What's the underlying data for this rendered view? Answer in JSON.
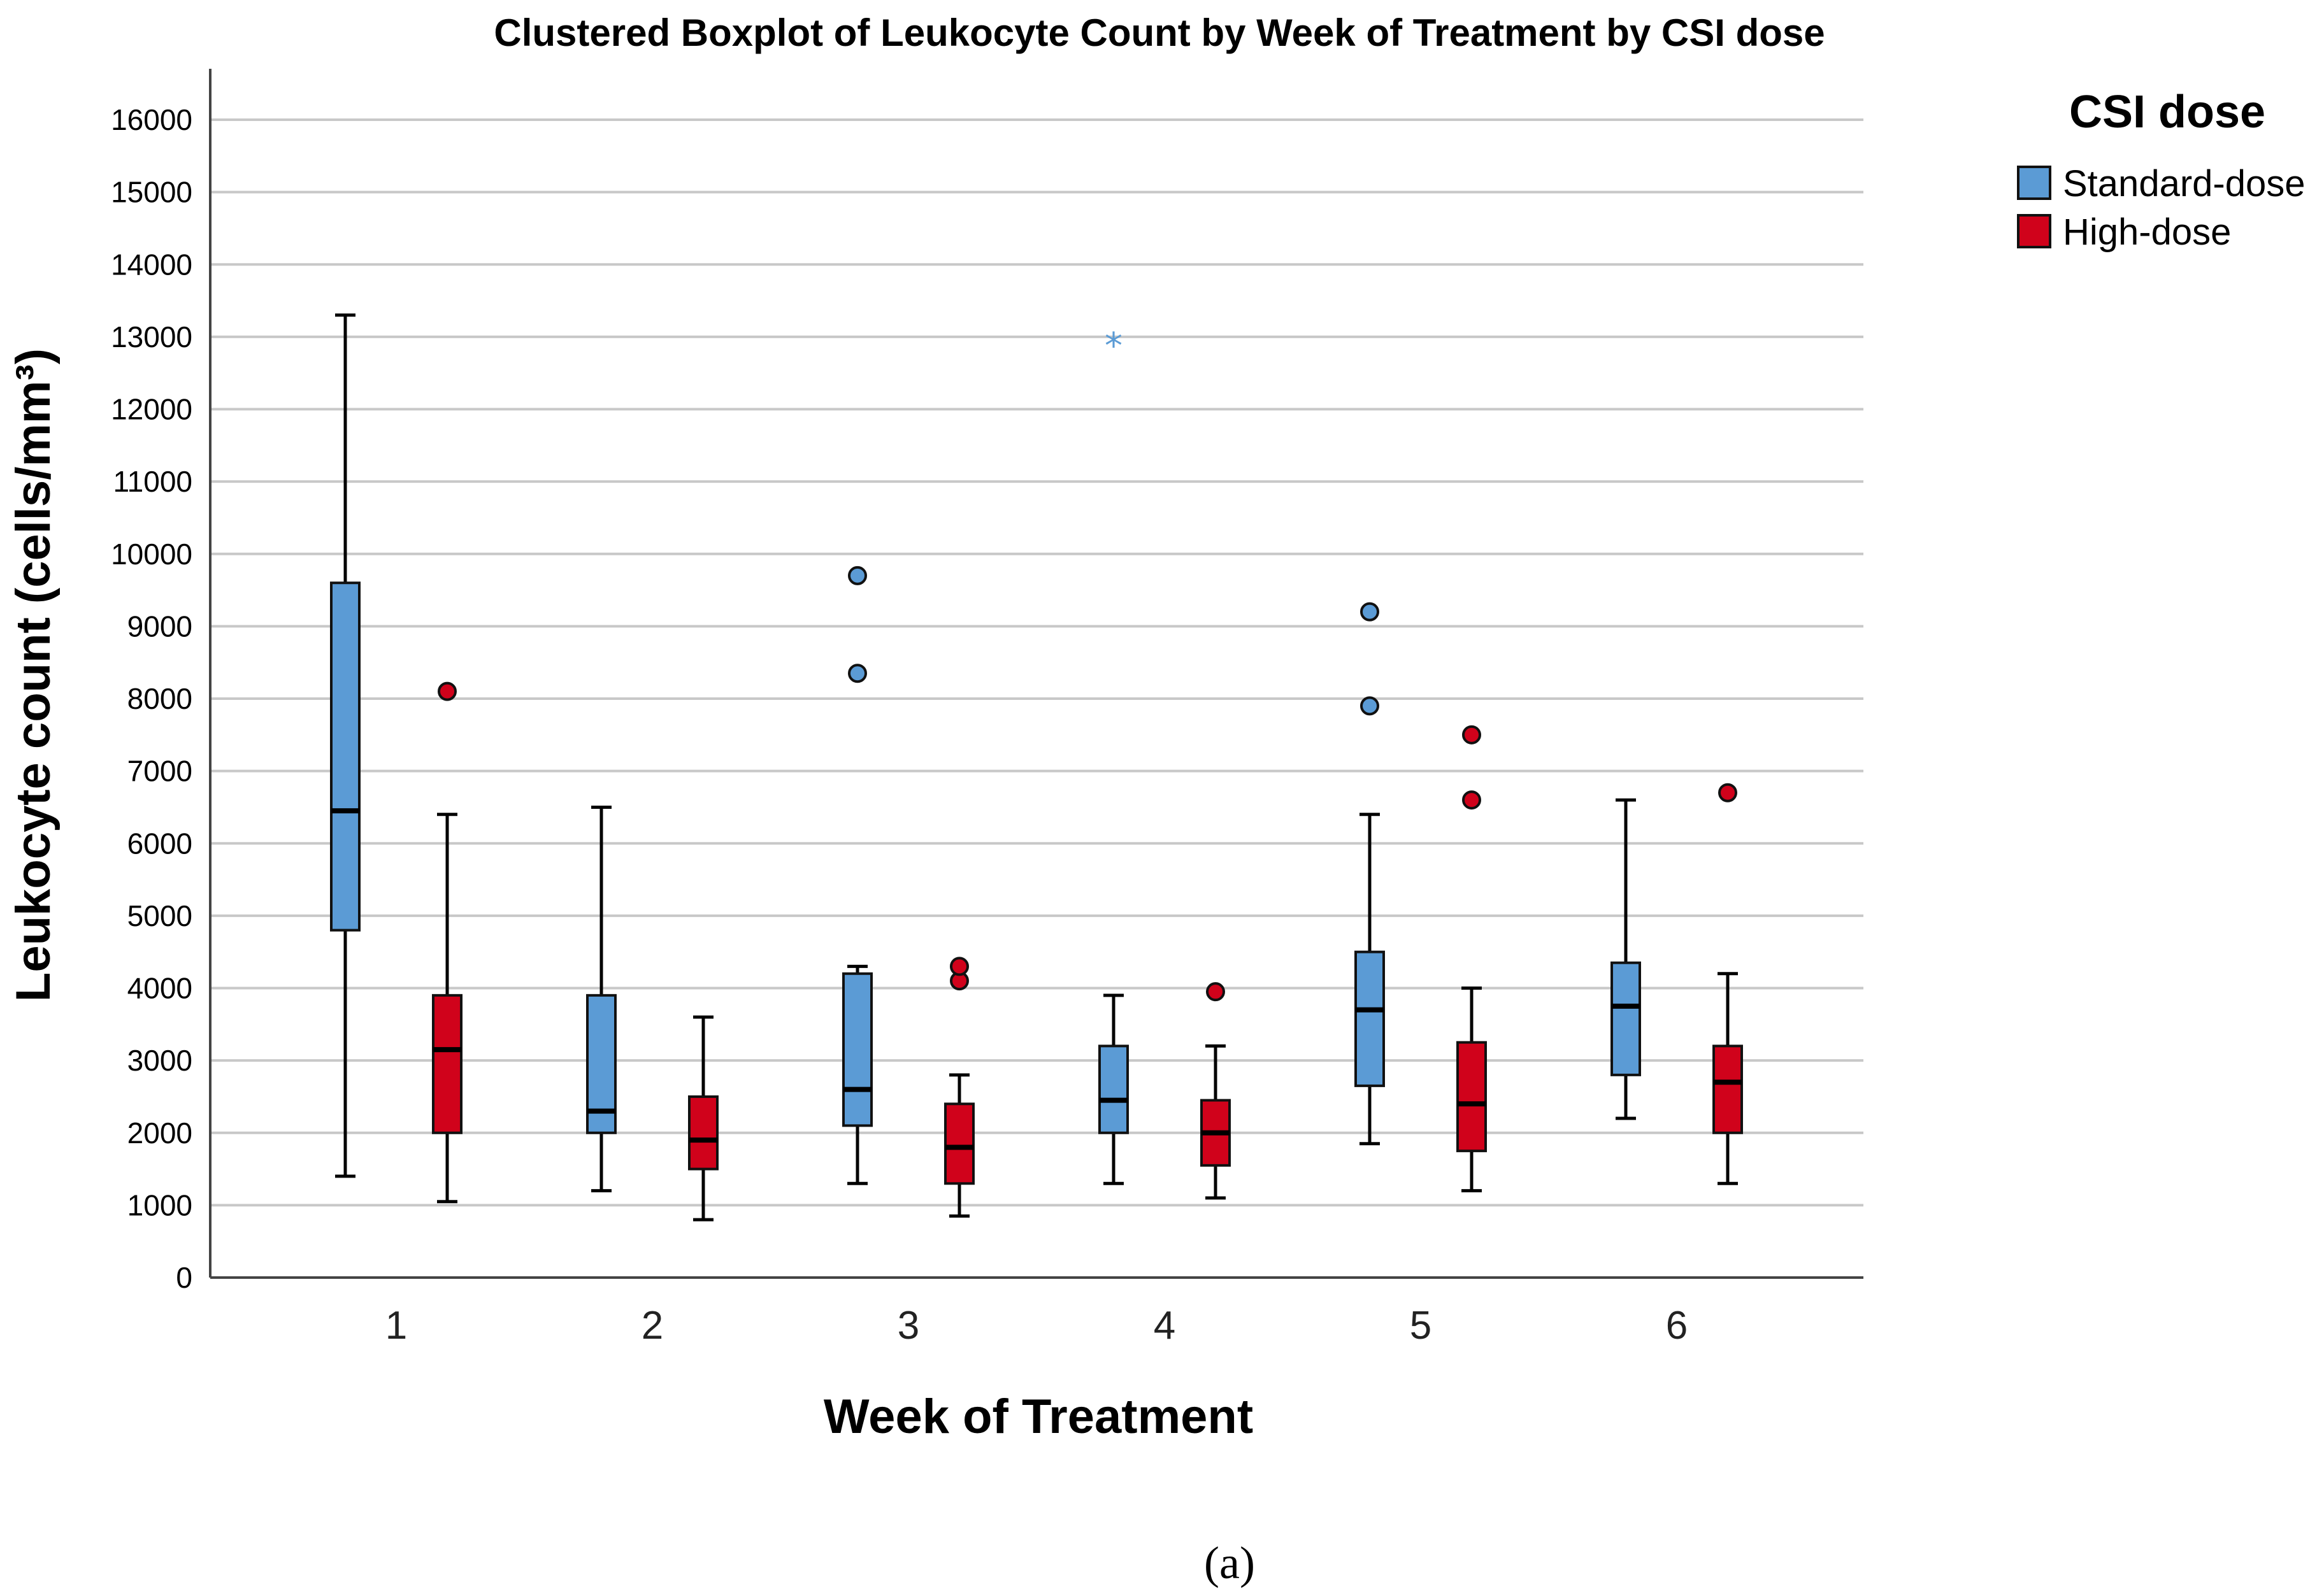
{
  "chart_data": {
    "type": "boxplot",
    "title": "Clustered Boxplot of Leukocyte Count by Week of Treatment by CSI dose",
    "xlabel": "Week of Treatment",
    "ylabel": "Leukocyte count (cells/mm³)",
    "ylim": [
      0,
      16000
    ],
    "yticks": [
      0,
      1000,
      2000,
      3000,
      4000,
      5000,
      6000,
      7000,
      8000,
      9000,
      10000,
      11000,
      12000,
      13000,
      14000,
      15000,
      16000
    ],
    "categories": [
      "1",
      "2",
      "3",
      "4",
      "5",
      "6"
    ],
    "grid": true,
    "legend": {
      "title": "CSI dose",
      "position": "right"
    },
    "series": [
      {
        "name": "Standard-dose",
        "color": "#5b9bd5",
        "boxes": [
          {
            "min": 1400,
            "q1": 4800,
            "median": 6450,
            "q3": 9600,
            "max": 13300,
            "outliers": [],
            "extremes": []
          },
          {
            "min": 1200,
            "q1": 2000,
            "median": 2300,
            "q3": 3900,
            "max": 6500,
            "outliers": [],
            "extremes": []
          },
          {
            "min": 1300,
            "q1": 2100,
            "median": 2600,
            "q3": 4200,
            "max": 4300,
            "outliers": [
              8350,
              9700
            ],
            "extremes": []
          },
          {
            "min": 1300,
            "q1": 2000,
            "median": 2450,
            "q3": 3200,
            "max": 3900,
            "outliers": [],
            "extremes": [
              12900
            ]
          },
          {
            "min": 1850,
            "q1": 2650,
            "median": 3700,
            "q3": 4500,
            "max": 6400,
            "outliers": [
              7900,
              9200
            ],
            "extremes": []
          },
          {
            "min": 2200,
            "q1": 2800,
            "median": 3750,
            "q3": 4350,
            "max": 6600,
            "outliers": [],
            "extremes": []
          }
        ]
      },
      {
        "name": "High-dose",
        "color": "#d0021b",
        "boxes": [
          {
            "min": 1050,
            "q1": 2000,
            "median": 3150,
            "q3": 3900,
            "max": 6400,
            "outliers": [
              8100
            ],
            "extremes": []
          },
          {
            "min": 800,
            "q1": 1500,
            "median": 1900,
            "q3": 2500,
            "max": 3600,
            "outliers": [],
            "extremes": []
          },
          {
            "min": 850,
            "q1": 1300,
            "median": 1800,
            "q3": 2400,
            "max": 2800,
            "outliers": [
              4100,
              4300
            ],
            "extremes": []
          },
          {
            "min": 1100,
            "q1": 1550,
            "median": 2000,
            "q3": 2450,
            "max": 3200,
            "outliers": [
              3950
            ],
            "extremes": []
          },
          {
            "min": 1200,
            "q1": 1750,
            "median": 2400,
            "q3": 3250,
            "max": 4000,
            "outliers": [
              6600,
              7500
            ],
            "extremes": []
          },
          {
            "min": 1300,
            "q1": 2000,
            "median": 2700,
            "q3": 3200,
            "max": 4200,
            "outliers": [
              6700
            ],
            "extremes": []
          }
        ]
      }
    ]
  },
  "caption": "(a)"
}
